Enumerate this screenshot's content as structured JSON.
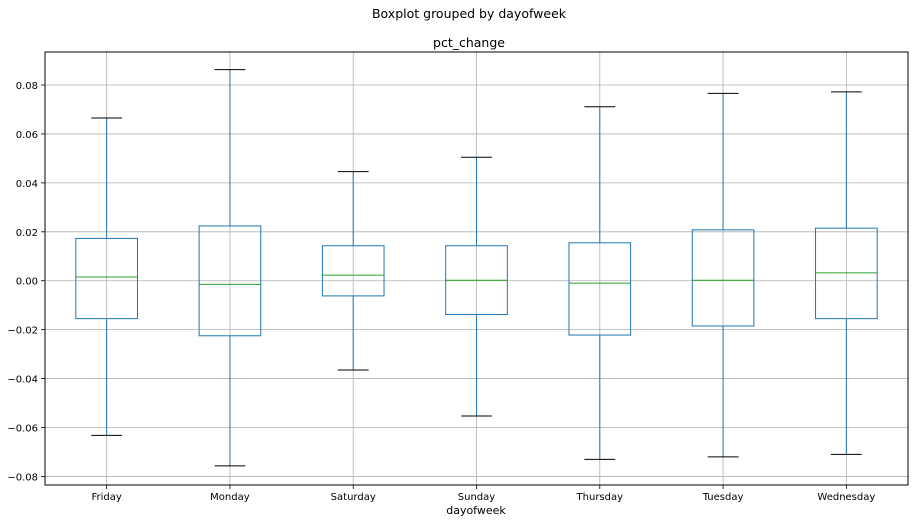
{
  "figure": {
    "suptitle": "Boxplot grouped by dayofweek",
    "title": "pct_change",
    "xlabel": "dayofweek"
  },
  "colors": {
    "box": "#1f77b4",
    "median": "#2ca02c",
    "cap": "#000000",
    "grid": "#b0b0b0",
    "axes": "#000000"
  },
  "chart_data": {
    "type": "box",
    "title": "pct_change",
    "suptitle": "Boxplot grouped by dayofweek",
    "xlabel": "dayofweek",
    "ylabel": "",
    "ylim": [
      -0.0835,
      0.0935
    ],
    "yticks": [
      -0.08,
      -0.06,
      -0.04,
      -0.02,
      0.0,
      0.02,
      0.04,
      0.06,
      0.08
    ],
    "ytick_labels": [
      "−0.08",
      "−0.06",
      "−0.04",
      "−0.02",
      "0.00",
      "0.02",
      "0.04",
      "0.06",
      "0.08"
    ],
    "grid": true,
    "categories": [
      "Friday",
      "Monday",
      "Saturday",
      "Sunday",
      "Thursday",
      "Tuesday",
      "Wednesday"
    ],
    "boxes": [
      {
        "category": "Friday",
        "whisker_low": -0.0632,
        "q1": -0.0155,
        "median": 0.0015,
        "q3": 0.0173,
        "whisker_high": 0.0665
      },
      {
        "category": "Monday",
        "whisker_low": -0.0757,
        "q1": -0.0225,
        "median": -0.0015,
        "q3": 0.0224,
        "whisker_high": 0.0863
      },
      {
        "category": "Saturday",
        "whisker_low": -0.0365,
        "q1": -0.0062,
        "median": 0.0023,
        "q3": 0.0143,
        "whisker_high": 0.0446
      },
      {
        "category": "Sunday",
        "whisker_low": -0.0553,
        "q1": -0.0138,
        "median": 0.0002,
        "q3": 0.0143,
        "whisker_high": 0.0505
      },
      {
        "category": "Thursday",
        "whisker_low": -0.073,
        "q1": -0.0222,
        "median": -0.001,
        "q3": 0.0155,
        "whisker_high": 0.0711
      },
      {
        "category": "Tuesday",
        "whisker_low": -0.072,
        "q1": -0.0185,
        "median": 0.0002,
        "q3": 0.0208,
        "whisker_high": 0.0766
      },
      {
        "category": "Wednesday",
        "whisker_low": -0.071,
        "q1": -0.0155,
        "median": 0.0032,
        "q3": 0.0215,
        "whisker_high": 0.0772
      }
    ]
  }
}
